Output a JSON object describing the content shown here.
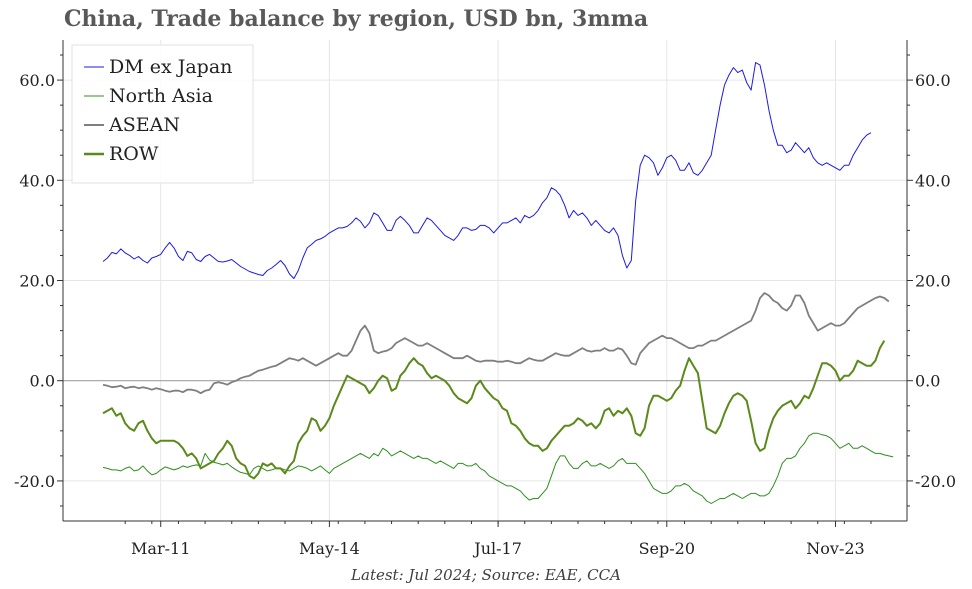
{
  "title": "China, Trade balance by region, USD bn, 3mma",
  "footer": "Latest: Jul 2024; Source: EAE, CCA",
  "chart_data": {
    "type": "line",
    "title": "China, Trade balance by region, USD bn, 3mma",
    "xlabel": "",
    "ylabel": "",
    "x_start": "2010-02",
    "x_end": "2024-07",
    "x_frequency": "monthly",
    "x_tick_labels": [
      "Mar-11",
      "May-14",
      "Jul-17",
      "Sep-20",
      "Nov-23"
    ],
    "y_tick_labels": [
      "-20.0",
      "0.0",
      "20.0",
      "40.0",
      "60.0"
    ],
    "ylim": [
      -28,
      68
    ],
    "grid": true,
    "legend_position": "top-left",
    "dual_y_axis": true,
    "series": [
      {
        "name": "DM ex Japan",
        "color": "#1a1ae6",
        "values": [
          23.8,
          24.5,
          25.6,
          25.3,
          26.3,
          25.5,
          25.0,
          24.3,
          24.8,
          24.0,
          23.5,
          24.5,
          24.8,
          25.2,
          26.5,
          27.6,
          26.5,
          24.8,
          24.0,
          25.8,
          25.5,
          24.2,
          23.8,
          24.8,
          25.2,
          24.5,
          23.8,
          23.7,
          23.9,
          24.2,
          23.5,
          22.8,
          22.3,
          21.8,
          21.5,
          21.2,
          21.0,
          22.0,
          22.5,
          23.2,
          24.0,
          23.0,
          21.3,
          20.4,
          22.0,
          24.5,
          26.5,
          27.2,
          28.0,
          28.3,
          28.8,
          29.5,
          30.0,
          30.5,
          30.5,
          30.8,
          31.5,
          32.5,
          31.8,
          30.5,
          31.5,
          33.5,
          33.0,
          31.5,
          30.0,
          30.0,
          32.0,
          32.8,
          32.0,
          31.0,
          29.5,
          29.5,
          31.0,
          32.5,
          32.0,
          31.0,
          30.0,
          29.0,
          28.5,
          28.0,
          29.0,
          30.5,
          30.5,
          30.0,
          30.2,
          31.0,
          31.0,
          30.5,
          29.5,
          30.5,
          31.5,
          31.5,
          32.0,
          32.5,
          31.5,
          33.0,
          32.5,
          33.0,
          34.0,
          35.5,
          36.5,
          38.5,
          38.0,
          37.0,
          35.0,
          32.5,
          34.0,
          33.0,
          33.5,
          32.5,
          31.0,
          32.0,
          31.0,
          30.0,
          29.5,
          30.5,
          29.0,
          25.0,
          22.5,
          24.0,
          36.0,
          43.0,
          45.0,
          44.5,
          43.5,
          41.0,
          42.5,
          44.5,
          45.0,
          44.0,
          42.0,
          42.0,
          43.5,
          41.5,
          41.0,
          42.0,
          43.5,
          45.0,
          50.0,
          55.0,
          59.0,
          61.0,
          62.5,
          61.5,
          62.0,
          59.5,
          58.0,
          63.5,
          63.0,
          59.0,
          54.0,
          50.0,
          47.0,
          47.0,
          45.5,
          46.0,
          47.5,
          46.5,
          45.5,
          46.5,
          44.5,
          43.5,
          43.0,
          43.5,
          43.0,
          42.5,
          42.0,
          43.0,
          43.0,
          45.0,
          46.5,
          48.0,
          49.0,
          49.5
        ]
      },
      {
        "name": "North Asia",
        "color": "#2f8f1f",
        "values": [
          -17.3,
          -17.5,
          -17.8,
          -17.8,
          -18.0,
          -17.5,
          -17.2,
          -18.0,
          -17.8,
          -17.0,
          -18.0,
          -18.8,
          -18.5,
          -17.8,
          -17.2,
          -17.5,
          -17.8,
          -17.5,
          -17.0,
          -17.3,
          -17.0,
          -16.8,
          -17.0,
          -14.5,
          -15.8,
          -16.3,
          -16.5,
          -16.8,
          -16.5,
          -17.2,
          -17.8,
          -18.3,
          -18.5,
          -18.8,
          -17.5,
          -17.0,
          -17.5,
          -18.0,
          -17.8,
          -17.5,
          -17.5,
          -17.8,
          -18.0,
          -17.5,
          -17.0,
          -17.2,
          -17.5,
          -18.0,
          -17.5,
          -17.0,
          -17.8,
          -18.5,
          -17.5,
          -17.0,
          -16.5,
          -16.0,
          -15.5,
          -15.0,
          -14.5,
          -15.0,
          -15.5,
          -14.5,
          -15.0,
          -13.5,
          -14.0,
          -15.0,
          -14.5,
          -14.0,
          -14.5,
          -15.0,
          -15.5,
          -15.0,
          -15.5,
          -15.5,
          -16.0,
          -16.5,
          -16.0,
          -16.5,
          -17.0,
          -17.5,
          -16.5,
          -16.5,
          -17.0,
          -17.0,
          -16.5,
          -17.5,
          -18.0,
          -19.0,
          -19.5,
          -20.0,
          -20.5,
          -21.0,
          -21.0,
          -21.5,
          -22.0,
          -23.0,
          -23.8,
          -23.5,
          -23.5,
          -22.5,
          -21.5,
          -19.0,
          -16.5,
          -15.0,
          -15.0,
          -16.5,
          -17.5,
          -17.5,
          -16.5,
          -16.0,
          -17.0,
          -17.0,
          -16.5,
          -17.0,
          -17.5,
          -17.0,
          -16.0,
          -15.5,
          -16.5,
          -16.5,
          -16.5,
          -17.5,
          -18.5,
          -20.0,
          -21.5,
          -22.0,
          -22.5,
          -22.5,
          -22.0,
          -21.0,
          -21.0,
          -20.5,
          -21.0,
          -22.0,
          -22.5,
          -23.0,
          -24.0,
          -24.5,
          -24.0,
          -23.5,
          -23.5,
          -23.0,
          -22.5,
          -23.0,
          -23.5,
          -23.0,
          -22.5,
          -22.5,
          -23.0,
          -23.0,
          -22.5,
          -21.0,
          -19.0,
          -16.5,
          -15.5,
          -15.5,
          -15.0,
          -13.5,
          -12.5,
          -11.0,
          -10.5,
          -10.5,
          -10.8,
          -11.0,
          -11.5,
          -12.5,
          -13.5,
          -13.0,
          -12.5,
          -13.5,
          -13.5,
          -13.0,
          -13.5,
          -14.0,
          -14.5,
          -14.5,
          -14.8,
          -15.0,
          -15.2
        ]
      },
      {
        "name": "ASEAN",
        "color": "#7f7f7f",
        "values": [
          -0.8,
          -1.0,
          -1.3,
          -1.2,
          -1.0,
          -1.5,
          -1.3,
          -1.2,
          -1.5,
          -1.3,
          -1.5,
          -1.8,
          -1.5,
          -1.7,
          -2.0,
          -2.2,
          -2.0,
          -2.0,
          -2.3,
          -1.8,
          -1.8,
          -2.0,
          -2.5,
          -2.0,
          -1.8,
          -0.5,
          -0.3,
          -0.5,
          -0.8,
          -0.3,
          0.0,
          0.5,
          0.8,
          1.0,
          1.5,
          2.0,
          2.2,
          2.5,
          2.8,
          3.0,
          3.5,
          4.0,
          4.5,
          4.3,
          4.0,
          4.5,
          4.0,
          3.5,
          3.0,
          3.5,
          4.0,
          4.5,
          5.0,
          5.5,
          5.0,
          5.0,
          6.0,
          8.0,
          10.0,
          11.0,
          9.5,
          6.0,
          5.5,
          5.8,
          6.0,
          6.5,
          7.5,
          8.0,
          8.5,
          8.0,
          7.5,
          7.0,
          7.0,
          7.5,
          7.0,
          6.5,
          6.0,
          5.5,
          5.0,
          4.5,
          4.5,
          4.5,
          5.0,
          4.5,
          4.0,
          3.8,
          4.0,
          4.0,
          4.0,
          3.8,
          3.8,
          4.0,
          3.8,
          3.5,
          3.5,
          4.0,
          4.5,
          4.2,
          4.0,
          4.0,
          4.5,
          5.0,
          5.5,
          5.2,
          5.0,
          5.0,
          5.5,
          6.0,
          6.5,
          6.0,
          5.8,
          6.0,
          6.0,
          6.5,
          6.0,
          6.0,
          6.5,
          6.2,
          5.0,
          3.5,
          3.2,
          5.5,
          6.5,
          7.5,
          8.0,
          8.5,
          9.0,
          8.5,
          8.5,
          8.0,
          7.5,
          7.0,
          6.5,
          6.5,
          7.0,
          7.0,
          7.5,
          8.0,
          8.0,
          8.5,
          9.0,
          9.5,
          10.0,
          10.5,
          11.0,
          11.5,
          12.0,
          14.0,
          16.5,
          17.5,
          17.0,
          16.0,
          15.5,
          14.5,
          14.0,
          15.0,
          17.0,
          17.0,
          15.5,
          13.0,
          11.5,
          10.0,
          10.5,
          11.0,
          11.5,
          11.0,
          11.0,
          11.5,
          12.5,
          13.5,
          14.5,
          15.0,
          15.5,
          16.0,
          16.5,
          16.8,
          16.5,
          15.8
        ]
      },
      {
        "name": "ROW",
        "color": "#5b8a1a",
        "values": [
          -6.5,
          -6.0,
          -5.5,
          -7.0,
          -6.5,
          -8.5,
          -9.5,
          -10.0,
          -8.5,
          -8.0,
          -10.0,
          -11.5,
          -12.5,
          -12.0,
          -12.0,
          -12.0,
          -12.0,
          -12.5,
          -13.5,
          -15.0,
          -14.5,
          -15.5,
          -17.5,
          -17.0,
          -16.5,
          -16.0,
          -14.5,
          -13.5,
          -12.0,
          -13.0,
          -15.5,
          -16.5,
          -17.0,
          -19.0,
          -19.5,
          -18.5,
          -16.5,
          -17.0,
          -16.5,
          -17.5,
          -17.5,
          -18.5,
          -17.0,
          -16.0,
          -12.5,
          -11.0,
          -10.0,
          -7.5,
          -8.0,
          -10.0,
          -9.0,
          -7.5,
          -5.0,
          -3.0,
          -1.0,
          1.0,
          0.5,
          0.0,
          -0.5,
          -1.0,
          -2.5,
          -1.5,
          0.0,
          1.0,
          0.5,
          -2.0,
          -1.5,
          1.0,
          2.0,
          3.5,
          4.5,
          3.5,
          3.0,
          1.5,
          0.5,
          1.0,
          0.5,
          0.0,
          -1.0,
          -2.5,
          -3.5,
          -4.0,
          -4.5,
          -3.5,
          -1.0,
          0.0,
          -1.5,
          -2.5,
          -3.5,
          -4.0,
          -5.5,
          -6.0,
          -8.5,
          -9.0,
          -10.0,
          -11.5,
          -12.5,
          -13.0,
          -13.0,
          -14.0,
          -13.5,
          -12.0,
          -11.0,
          -10.0,
          -9.0,
          -9.0,
          -8.5,
          -7.5,
          -8.0,
          -9.0,
          -8.5,
          -9.5,
          -8.5,
          -6.0,
          -5.5,
          -7.0,
          -6.0,
          -6.5,
          -5.5,
          -7.0,
          -10.5,
          -11.0,
          -9.5,
          -5.0,
          -3.0,
          -3.0,
          -3.5,
          -4.0,
          -3.5,
          -2.0,
          -1.0,
          2.0,
          4.5,
          3.0,
          1.5,
          -4.0,
          -9.5,
          -10.0,
          -10.5,
          -9.0,
          -6.5,
          -4.5,
          -3.0,
          -2.5,
          -3.0,
          -4.0,
          -8.0,
          -12.5,
          -14.0,
          -13.5,
          -10.0,
          -7.5,
          -6.0,
          -5.0,
          -4.5,
          -4.0,
          -5.5,
          -4.5,
          -3.0,
          -3.5,
          -1.5,
          1.0,
          3.5,
          3.5,
          3.0,
          2.0,
          0.0,
          1.0,
          1.0,
          2.0,
          4.0,
          3.5,
          3.0,
          3.0,
          4.0,
          6.5,
          8.0
        ]
      }
    ]
  }
}
